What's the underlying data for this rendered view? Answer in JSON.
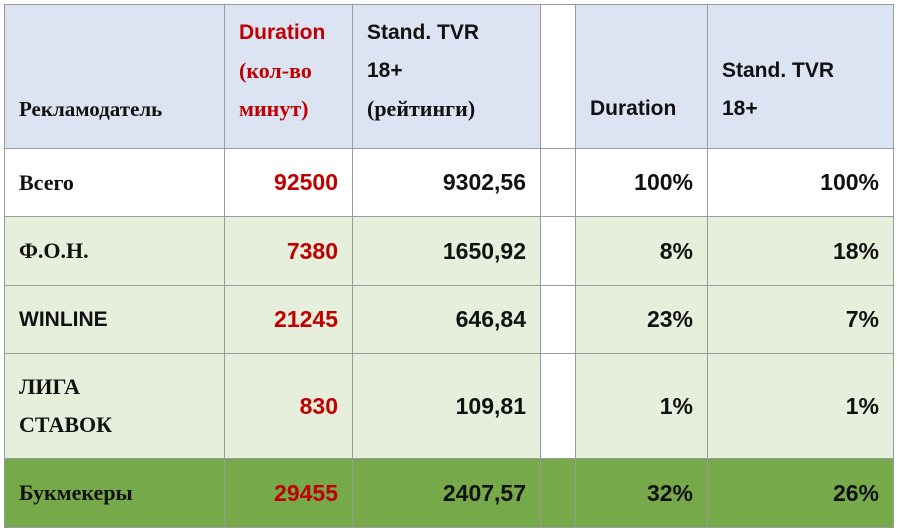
{
  "table": {
    "header": {
      "advertiser": "Рекламодатель",
      "duration": "Duration",
      "duration_unit": "(кол-во минут)",
      "tvr": "Stand. TVR 18+",
      "tvr_unit": "(рейтинги)",
      "duration_share": "Duration",
      "tvr_share": "Stand. TVR 18+"
    },
    "rows": [
      [
        "Всего",
        "92500",
        "9302,56",
        "100%",
        "100%"
      ],
      [
        "Ф.О.Н.",
        "7380",
        "1650,92",
        "8%",
        "18%"
      ],
      [
        "WINLINE",
        "21245",
        "646,84",
        "23%",
        "7%"
      ],
      [
        "ЛИГА СТАВОК",
        "830",
        "109,81",
        "1%",
        "1%"
      ],
      [
        "Букмекеры",
        "29455",
        "2407,57",
        "32%",
        "26%"
      ]
    ]
  }
}
